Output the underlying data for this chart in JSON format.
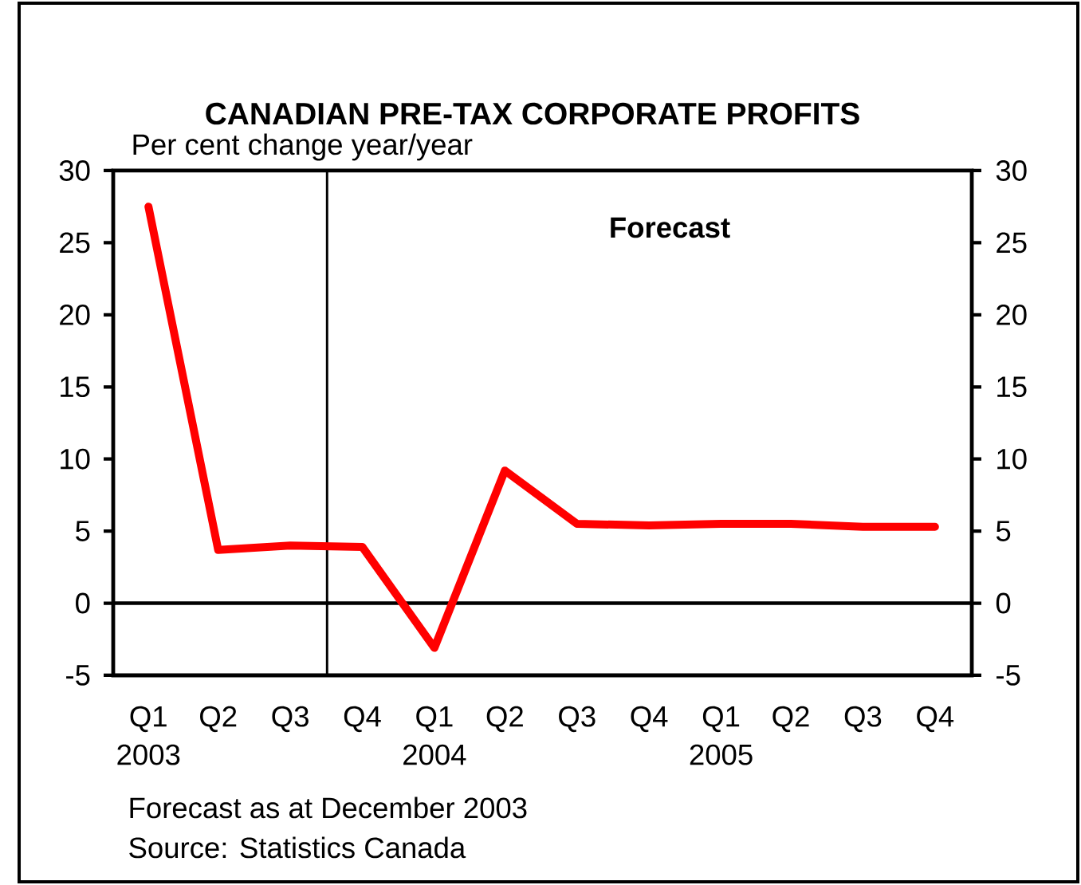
{
  "chart_data": {
    "type": "line",
    "title": "CANADIAN PRE-TAX CORPORATE PROFITS",
    "ylabel": "Per cent change year/year",
    "x": [
      "2003-02-15",
      "2003-05-15",
      "2003-08-15",
      "2003-11-15",
      "2004-02-15",
      "2004-05-15",
      "2004-08-15",
      "2004-11-15",
      "2005-02-15",
      "2005-05-15",
      "2005-08-15",
      "2005-11-15"
    ],
    "series": [
      {
        "color": "#ff0000",
        "values": [
          27.5,
          3.7,
          4.0,
          3.9,
          -3.1,
          9.2,
          5.5,
          5.4,
          5.5,
          5.5,
          5.3,
          5.3
        ]
      }
    ],
    "xlim": [
      "2003-01-01",
      "2006-01-01"
    ],
    "xticks": [
      {
        "value": "2003-02-15",
        "label": "Q1 2003"
      },
      {
        "value": "2003-05-15",
        "label": "Q2"
      },
      {
        "value": "2003-08-15",
        "label": "Q3"
      },
      {
        "value": "2003-11-15",
        "label": "Q4"
      },
      {
        "value": "2004-02-15",
        "label": "Q1 2004"
      },
      {
        "value": "2004-05-15",
        "label": "Q2"
      },
      {
        "value": "2004-08-15",
        "label": "Q3"
      },
      {
        "value": "2004-11-15",
        "label": "Q4"
      },
      {
        "value": "2005-02-15",
        "label": "Q1 2005"
      },
      {
        "value": "2005-05-15",
        "label": "Q2"
      },
      {
        "value": "2005-08-15",
        "label": "Q3"
      },
      {
        "value": "2005-11-15",
        "label": "Q4"
      }
    ],
    "ylim": [
      -5,
      30
    ],
    "yticks": [
      -5,
      0,
      5,
      10,
      15,
      20,
      25,
      30
    ],
    "y2lim": [
      -5,
      30
    ],
    "y2ticks": [
      -5,
      0,
      5,
      10,
      15,
      20,
      25,
      30
    ],
    "ref_lines": [
      {
        "axis": "y",
        "value": 0,
        "color": "#000000"
      },
      {
        "axis": "x",
        "value": "2003-10-01",
        "color": "#000000"
      }
    ],
    "annotations": [
      "Forecast",
      "Forecast as at December 2003",
      "Source: Statistics Canada"
    ],
    "marker": "none",
    "line_style": "solid"
  }
}
